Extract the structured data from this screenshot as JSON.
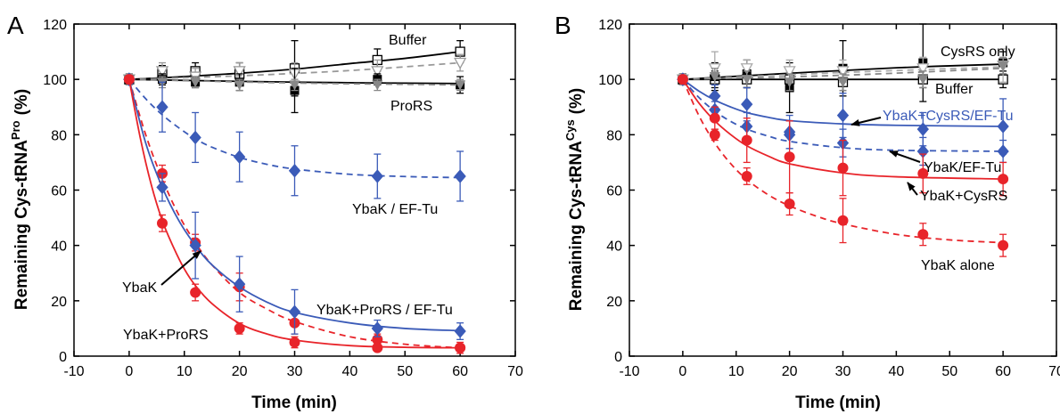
{
  "chart_data": [
    {
      "panel_label": "A",
      "type": "scatter",
      "xlabel": "Time (min)",
      "ylabel": "Remaining Cys-tRNA",
      "ylabel_sup": "Pro",
      "ylabel_unit": "(%)",
      "xlim": [
        -10,
        70
      ],
      "ylim": [
        0,
        120
      ],
      "xticks": [
        -10,
        0,
        10,
        20,
        30,
        40,
        50,
        60,
        70
      ],
      "yticks": [
        0,
        20,
        40,
        60,
        80,
        100,
        120
      ],
      "series": [
        {
          "name": "Buffer",
          "color": "#000000",
          "marker": "square-open",
          "line": "solid",
          "x": [
            0,
            6,
            12,
            20,
            30,
            45,
            60
          ],
          "y": [
            100,
            102,
            103,
            102,
            104,
            107,
            110
          ],
          "err": [
            2,
            3,
            3,
            4,
            10,
            4,
            4
          ],
          "fit": [
            [
              0,
              100
            ],
            [
              10,
              101
            ],
            [
              20,
              102.2
            ],
            [
              30,
              103.7
            ],
            [
              40,
              105.7
            ],
            [
              50,
              107.6
            ],
            [
              60,
              110
            ]
          ]
        },
        {
          "name": "",
          "color": "#999999",
          "marker": "triangle-down-open",
          "line": "dashed",
          "x": [
            0,
            6,
            12,
            20,
            30,
            45,
            60
          ],
          "y": [
            100,
            103,
            101,
            103,
            102,
            103,
            106
          ],
          "err": [
            2,
            3,
            3,
            3,
            4,
            4,
            3
          ],
          "fit": [
            [
              0,
              100
            ],
            [
              20,
              101.3
            ],
            [
              40,
              103.2
            ],
            [
              60,
              106
            ]
          ]
        },
        {
          "name": "ProRS",
          "color": "#000000",
          "marker": "square",
          "line": "solid",
          "x": [
            0,
            6,
            12,
            20,
            30,
            45,
            60
          ],
          "y": [
            100,
            100,
            99,
            99,
            96,
            100,
            98
          ],
          "err": [
            1,
            2,
            2,
            3,
            8,
            2,
            3
          ],
          "fit": [
            [
              0,
              100
            ],
            [
              30,
              99
            ],
            [
              60,
              98.5
            ]
          ]
        },
        {
          "name": "",
          "color": "#888888",
          "marker": "triangle-down",
          "line": "dashed",
          "x": [
            0,
            6,
            12,
            20,
            30,
            45,
            60
          ],
          "y": [
            100,
            99,
            99,
            98,
            98,
            98,
            98
          ],
          "err": [
            1,
            2,
            2,
            2,
            2,
            2,
            2
          ],
          "fit": [
            [
              0,
              100
            ],
            [
              30,
              98.7
            ],
            [
              60,
              98
            ]
          ]
        },
        {
          "name": "YbaK / EF-Tu",
          "color": "#3b5bb8",
          "marker": "diamond",
          "line": "dashed",
          "x": [
            0,
            6,
            12,
            20,
            30,
            45,
            60
          ],
          "y": [
            100,
            90,
            79,
            72,
            67,
            65,
            65
          ],
          "err": [
            0,
            9,
            9,
            9,
            9,
            8,
            9
          ],
          "fit": [
            [
              0,
              100
            ],
            [
              3,
              93
            ],
            [
              6,
              87.2
            ],
            [
              9,
              82.5
            ],
            [
              12,
              78.5
            ],
            [
              15,
              75.5
            ],
            [
              20,
              71.8
            ],
            [
              25,
              69.3
            ],
            [
              30,
              67.6
            ],
            [
              40,
              65.7
            ],
            [
              50,
              64.9
            ],
            [
              60,
              64.5
            ]
          ]
        },
        {
          "name": "YbaK",
          "color": "#e8242a",
          "marker": "circle",
          "line": "dashed",
          "x": [
            0,
            6,
            12,
            20,
            30,
            45,
            60
          ],
          "y": [
            100,
            66,
            41,
            25,
            12,
            6,
            3
          ],
          "err": [
            0,
            3,
            3,
            5,
            4,
            2,
            2
          ],
          "fit": [
            [
              0,
              100
            ],
            [
              3,
              80
            ],
            [
              6,
              64
            ],
            [
              9,
              51
            ],
            [
              12,
              41
            ],
            [
              15,
              33
            ],
            [
              20,
              23
            ],
            [
              25,
              17
            ],
            [
              30,
              12.5
            ],
            [
              40,
              7
            ],
            [
              50,
              4.3
            ],
            [
              60,
              3
            ]
          ]
        },
        {
          "name": "YbaK+ProRS / EF-Tu",
          "color": "#3b5bb8",
          "marker": "diamond",
          "line": "solid",
          "x": [
            0,
            6,
            12,
            20,
            30,
            45,
            60
          ],
          "y": [
            100,
            61,
            40,
            26,
            16,
            10,
            9
          ],
          "err": [
            0,
            5,
            12,
            10,
            8,
            3,
            3
          ],
          "fit": [
            [
              0,
              100
            ],
            [
              3,
              77
            ],
            [
              6,
              61
            ],
            [
              9,
              49
            ],
            [
              12,
              40
            ],
            [
              15,
              33
            ],
            [
              20,
              25
            ],
            [
              25,
              19.5
            ],
            [
              30,
              15.8
            ],
            [
              40,
              12
            ],
            [
              50,
              10
            ],
            [
              60,
              9.2
            ]
          ]
        },
        {
          "name": "YbaK+ProRS",
          "color": "#e8242a",
          "marker": "circle",
          "line": "solid",
          "x": [
            0,
            6,
            12,
            20,
            30,
            45,
            60
          ],
          "y": [
            100,
            48,
            23,
            10,
            5,
            3,
            3
          ],
          "err": [
            0,
            3,
            3,
            2,
            2,
            1,
            1
          ],
          "fit": [
            [
              0,
              100
            ],
            [
              2,
              79
            ],
            [
              4,
              62
            ],
            [
              6,
              49
            ],
            [
              8,
              39.5
            ],
            [
              10,
              31.5
            ],
            [
              12,
              25.5
            ],
            [
              15,
              19
            ],
            [
              20,
              11.8
            ],
            [
              25,
              8
            ],
            [
              30,
              5.8
            ],
            [
              40,
              3.8
            ],
            [
              50,
              3.2
            ],
            [
              60,
              3
            ]
          ]
        }
      ],
      "annotations": [
        {
          "text": "Buffer",
          "color": "#000000"
        },
        {
          "text": "ProRS",
          "color": "#000000"
        },
        {
          "text": "YbaK / EF-Tu",
          "color": "#000000"
        },
        {
          "text": "YbaK",
          "color": "#000000"
        },
        {
          "text": "YbaK+ProRS / EF-Tu",
          "color": "#000000"
        },
        {
          "text": "YbaK+ProRS",
          "color": "#000000"
        }
      ]
    },
    {
      "panel_label": "B",
      "type": "scatter",
      "xlabel": "Time (min)",
      "ylabel": "Remaining Cys-tRNA",
      "ylabel_sup": "Cys",
      "ylabel_unit": "(%)",
      "xlim": [
        -10,
        70
      ],
      "ylim": [
        0,
        120
      ],
      "xticks": [
        -10,
        0,
        10,
        20,
        30,
        40,
        50,
        60,
        70
      ],
      "yticks": [
        0,
        20,
        40,
        60,
        80,
        100,
        120
      ],
      "series": [
        {
          "name": "Buffer",
          "color": "#000000",
          "marker": "square-open",
          "line": "solid",
          "x": [
            0,
            6,
            12,
            20,
            30,
            45,
            60
          ],
          "y": [
            100,
            100,
            100,
            100,
            99,
            100,
            100
          ],
          "err": [
            2,
            3,
            3,
            3,
            3,
            3,
            3
          ],
          "fit": [
            [
              0,
              100
            ],
            [
              60,
              100
            ]
          ]
        },
        {
          "name": "CysRS only",
          "color": "#000000",
          "marker": "square",
          "line": "solid",
          "x": [
            0,
            6,
            12,
            20,
            30,
            45,
            60
          ],
          "y": [
            100,
            101,
            102,
            97,
            104,
            106,
            106
          ],
          "err": [
            2,
            5,
            5,
            9,
            10,
            14,
            4
          ],
          "fit": [
            [
              0,
              100
            ],
            [
              20,
              102.2
            ],
            [
              40,
              104.2
            ],
            [
              60,
              105.5
            ]
          ]
        },
        {
          "name": "",
          "color": "#aaaaaa",
          "marker": "triangle-down-open",
          "line": "dashed",
          "x": [
            0,
            6,
            12,
            20,
            30,
            45,
            60
          ],
          "y": [
            100,
            104,
            104,
            103,
            103,
            104,
            105
          ],
          "err": [
            2,
            6,
            3,
            4,
            4,
            4,
            6
          ],
          "fit": [
            [
              0,
              100
            ],
            [
              30,
              102.5
            ],
            [
              60,
              104.5
            ]
          ]
        },
        {
          "name": "",
          "color": "#888888",
          "marker": "triangle-down",
          "line": "dashed",
          "x": [
            0,
            6,
            12,
            20,
            30,
            45,
            60
          ],
          "y": [
            100,
            101,
            100,
            99,
            99,
            100,
            105
          ],
          "err": [
            1,
            3,
            3,
            3,
            3,
            3,
            3
          ],
          "fit": [
            [
              0,
              100
            ],
            [
              30,
              101.5
            ],
            [
              60,
              104
            ]
          ]
        },
        {
          "name": "YbaK+CysRS/EF-Tu",
          "color": "#3b5bb8",
          "marker": "diamond",
          "line": "solid",
          "x": [
            0,
            6,
            12,
            20,
            30,
            45,
            60
          ],
          "y": [
            100,
            94,
            91,
            81,
            87,
            82,
            83
          ],
          "err": [
            0,
            4,
            6,
            6,
            8,
            6,
            10
          ],
          "fit": [
            [
              0,
              100
            ],
            [
              3,
              95.8
            ],
            [
              6,
              92.5
            ],
            [
              9,
              90
            ],
            [
              12,
              88
            ],
            [
              16,
              86.3
            ],
            [
              20,
              85.1
            ],
            [
              30,
              83.9
            ],
            [
              40,
              83.4
            ],
            [
              60,
              83
            ]
          ]
        },
        {
          "name": "YbaK/EF-Tu",
          "color": "#3b5bb8",
          "marker": "diamond",
          "line": "dashed",
          "x": [
            0,
            6,
            12,
            20,
            30,
            45,
            60
          ],
          "y": [
            100,
            89,
            83,
            80,
            77,
            74,
            74
          ],
          "err": [
            0,
            3,
            5,
            5,
            5,
            5,
            4
          ],
          "fit": [
            [
              0,
              100
            ],
            [
              3,
              93.5
            ],
            [
              6,
              88.5
            ],
            [
              9,
              84.8
            ],
            [
              12,
              82
            ],
            [
              16,
              79.5
            ],
            [
              20,
              77.6
            ],
            [
              30,
              75.3
            ],
            [
              40,
              74.4
            ],
            [
              60,
              74
            ]
          ]
        },
        {
          "name": "YbaK+CysRS",
          "color": "#e8242a",
          "marker": "circle",
          "line": "solid",
          "x": [
            0,
            6,
            12,
            20,
            30,
            45,
            60
          ],
          "y": [
            100,
            86,
            78,
            72,
            68,
            66,
            64
          ],
          "err": [
            0,
            4,
            8,
            13,
            10,
            7,
            6
          ],
          "fit": [
            [
              0,
              100
            ],
            [
              3,
              91.5
            ],
            [
              6,
              85
            ],
            [
              9,
              80
            ],
            [
              12,
              76
            ],
            [
              16,
              72.3
            ],
            [
              20,
              69.5
            ],
            [
              30,
              66.2
            ],
            [
              40,
              64.8
            ],
            [
              60,
              64
            ]
          ]
        },
        {
          "name": "YbaK alone",
          "color": "#e8242a",
          "marker": "circle",
          "line": "dashed",
          "x": [
            0,
            6,
            12,
            20,
            30,
            45,
            60
          ],
          "y": [
            100,
            80,
            65,
            55,
            49,
            44,
            40
          ],
          "err": [
            0,
            2,
            3,
            4,
            8,
            4,
            4
          ],
          "fit": [
            [
              0,
              100
            ],
            [
              3,
              87
            ],
            [
              6,
              77
            ],
            [
              9,
              69.5
            ],
            [
              12,
              63.8
            ],
            [
              16,
              58.3
            ],
            [
              20,
              54.3
            ],
            [
              25,
              50.6
            ],
            [
              30,
              47.8
            ],
            [
              40,
              44
            ],
            [
              50,
              42
            ],
            [
              60,
              41
            ]
          ]
        }
      ],
      "annotations": [
        {
          "text": "CysRS only",
          "color": "#000000"
        },
        {
          "text": "Buffer",
          "color": "#000000"
        },
        {
          "text": "YbaK+CysRS/EF-Tu",
          "color": "#3b5bb8"
        },
        {
          "text": "YbaK/EF-Tu",
          "color": "#000000"
        },
        {
          "text": "YbaK+CysRS",
          "color": "#000000"
        },
        {
          "text": "YbaK alone",
          "color": "#000000"
        }
      ]
    }
  ]
}
